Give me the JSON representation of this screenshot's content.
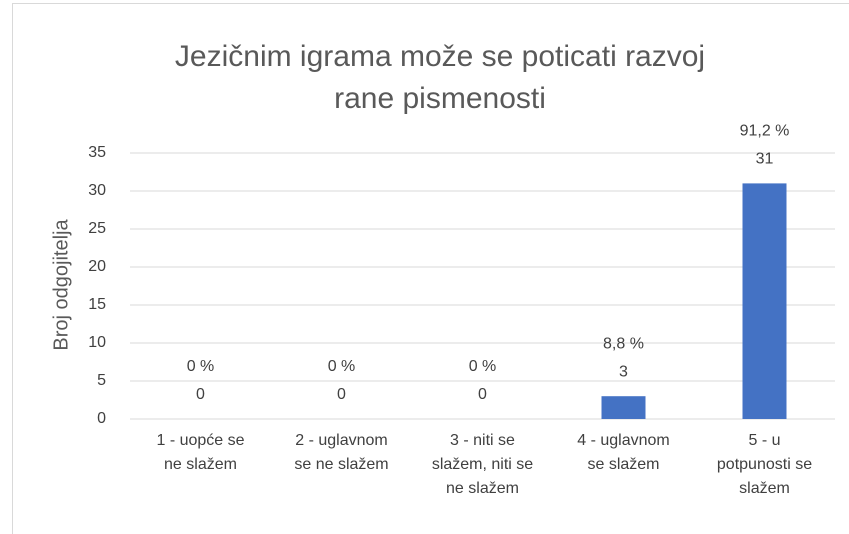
{
  "chart_data": {
    "type": "bar",
    "title": "Jezičnim igrama može se poticati razvoj\nrane pismenosti",
    "y_label": "Broj odgojitelja",
    "categories": [
      "1 - uopće se\nne slažem",
      "2 - uglavnom\nse ne slažem",
      "3 - niti se\nslažem, niti se\nne slažem",
      "4 - uglavnom\nse slažem",
      "5 - u\npotpunosti se\nslažem"
    ],
    "values": [
      0,
      0,
      0,
      3,
      31
    ],
    "percentages": [
      0,
      0,
      0,
      8.8,
      91.2
    ],
    "percentage_labels": [
      "0 %",
      "0 %",
      "0 %",
      "8,8 %",
      "91,2 %"
    ],
    "color": "#4472c4",
    "ylim": [
      0,
      35
    ],
    "yticks": [
      0,
      5,
      10,
      15,
      20,
      25,
      30,
      35
    ],
    "grid": true
  }
}
